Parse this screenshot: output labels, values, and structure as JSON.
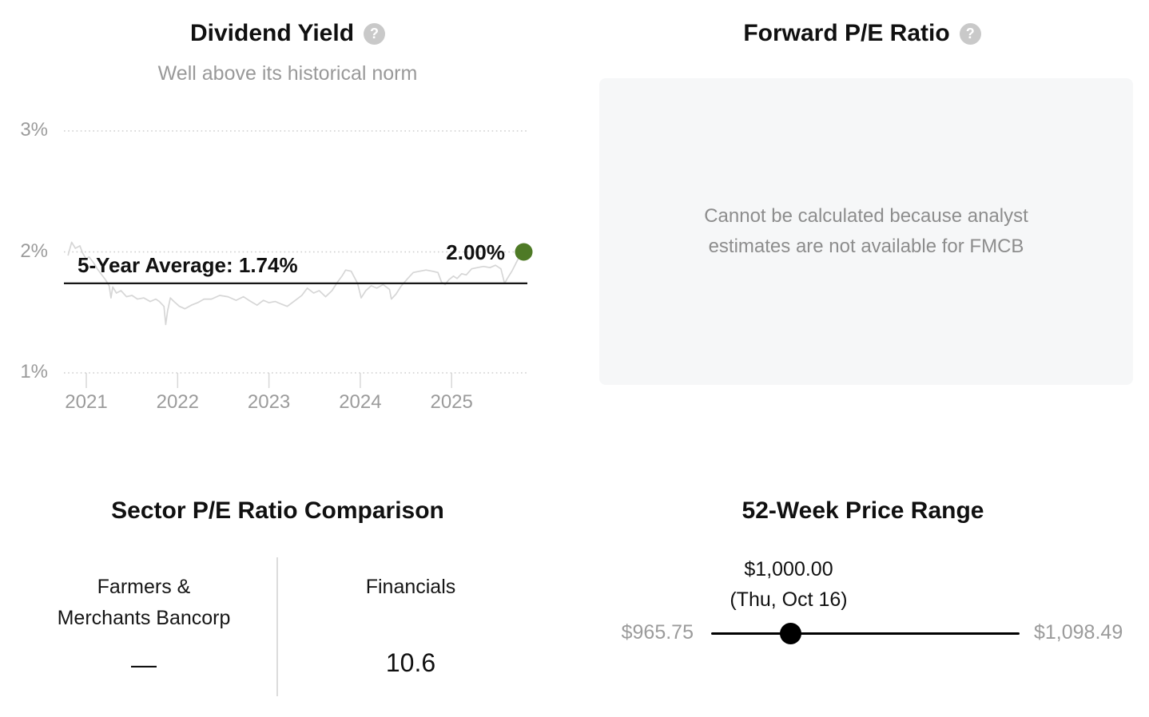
{
  "ui": {
    "help_glyph": "?",
    "background": "#ffffff",
    "accent_green": "#4e7a26",
    "muted_color": "#999999"
  },
  "forward_pe": {
    "title": "Forward P/E Ratio",
    "message_line1": "Cannot be calculated because analyst",
    "message_line2": "estimates are not available for FMCB",
    "panel_color": "#f6f7f8"
  },
  "chart_data": [
    {
      "id": "dividend-yield-history",
      "type": "line",
      "title": "Dividend Yield",
      "subtitle": "Well above its historical norm",
      "xlabel": "",
      "ylabel": "",
      "ylim": [
        1,
        3.2
      ],
      "xlim": [
        2020.8,
        2025.83
      ],
      "grid": "dotted-horizontal",
      "legend_position": "none",
      "y_ticks": [
        {
          "label": "3%",
          "value": 3
        },
        {
          "label": "2%",
          "value": 2
        },
        {
          "label": "1%",
          "value": 1
        }
      ],
      "x_ticks": [
        {
          "label": "2021",
          "value": 2021
        },
        {
          "label": "2022",
          "value": 2022
        },
        {
          "label": "2023",
          "value": 2023
        },
        {
          "label": "2024",
          "value": 2024
        },
        {
          "label": "2025",
          "value": 2025
        }
      ],
      "reference_line": {
        "label": "5-Year Average: 1.74%",
        "value": 1.74,
        "color": "#151515"
      },
      "end_marker": {
        "label": "2.00%",
        "value": 2.0,
        "color": "#4e7a26"
      },
      "series": [
        {
          "name": "Dividend yield",
          "color": "#d6d6d6",
          "points": [
            [
              2020.8,
              1.97
            ],
            [
              2020.84,
              2.08
            ],
            [
              2020.88,
              2.03
            ],
            [
              2020.93,
              2.05
            ],
            [
              2020.96,
              1.99
            ],
            [
              2021.0,
              1.94
            ],
            [
              2021.03,
              1.96
            ],
            [
              2021.08,
              1.91
            ],
            [
              2021.12,
              1.86
            ],
            [
              2021.17,
              1.81
            ],
            [
              2021.21,
              1.77
            ],
            [
              2021.25,
              1.72
            ],
            [
              2021.27,
              1.62
            ],
            [
              2021.29,
              1.71
            ],
            [
              2021.33,
              1.66
            ],
            [
              2021.38,
              1.68
            ],
            [
              2021.44,
              1.63
            ],
            [
              2021.5,
              1.64
            ],
            [
              2021.56,
              1.61
            ],
            [
              2021.63,
              1.62
            ],
            [
              2021.7,
              1.59
            ],
            [
              2021.76,
              1.61
            ],
            [
              2021.8,
              1.59
            ],
            [
              2021.85,
              1.55
            ],
            [
              2021.87,
              1.4
            ],
            [
              2021.89,
              1.51
            ],
            [
              2021.92,
              1.62
            ],
            [
              2021.96,
              1.59
            ],
            [
              2022.02,
              1.55
            ],
            [
              2022.08,
              1.53
            ],
            [
              2022.15,
              1.56
            ],
            [
              2022.22,
              1.58
            ],
            [
              2022.29,
              1.61
            ],
            [
              2022.37,
              1.61
            ],
            [
              2022.46,
              1.64
            ],
            [
              2022.55,
              1.63
            ],
            [
              2022.64,
              1.6
            ],
            [
              2022.72,
              1.63
            ],
            [
              2022.78,
              1.6
            ],
            [
              2022.87,
              1.56
            ],
            [
              2022.94,
              1.6
            ],
            [
              2023.0,
              1.58
            ],
            [
              2023.07,
              1.59
            ],
            [
              2023.13,
              1.57
            ],
            [
              2023.2,
              1.55
            ],
            [
              2023.29,
              1.6
            ],
            [
              2023.36,
              1.64
            ],
            [
              2023.42,
              1.7
            ],
            [
              2023.49,
              1.66
            ],
            [
              2023.55,
              1.68
            ],
            [
              2023.62,
              1.63
            ],
            [
              2023.69,
              1.68
            ],
            [
              2023.75,
              1.75
            ],
            [
              2023.8,
              1.8
            ],
            [
              2023.84,
              1.85
            ],
            [
              2023.9,
              1.84
            ],
            [
              2023.97,
              1.74
            ],
            [
              2024.01,
              1.62
            ],
            [
              2024.06,
              1.68
            ],
            [
              2024.12,
              1.72
            ],
            [
              2024.18,
              1.7
            ],
            [
              2024.25,
              1.73
            ],
            [
              2024.32,
              1.69
            ],
            [
              2024.34,
              1.61
            ],
            [
              2024.39,
              1.65
            ],
            [
              2024.45,
              1.72
            ],
            [
              2024.52,
              1.78
            ],
            [
              2024.58,
              1.83
            ],
            [
              2024.65,
              1.84
            ],
            [
              2024.72,
              1.85
            ],
            [
              2024.79,
              1.84
            ],
            [
              2024.85,
              1.83
            ],
            [
              2024.89,
              1.75
            ],
            [
              2024.93,
              1.73
            ],
            [
              2024.97,
              1.77
            ],
            [
              2025.02,
              1.8
            ],
            [
              2025.06,
              1.78
            ],
            [
              2025.11,
              1.82
            ],
            [
              2025.16,
              1.81
            ],
            [
              2025.22,
              1.86
            ],
            [
              2025.28,
              1.87
            ],
            [
              2025.35,
              1.88
            ],
            [
              2025.42,
              1.87
            ],
            [
              2025.48,
              1.89
            ],
            [
              2025.54,
              1.86
            ],
            [
              2025.58,
              1.74
            ],
            [
              2025.61,
              1.78
            ],
            [
              2025.66,
              1.84
            ],
            [
              2025.7,
              1.9
            ],
            [
              2025.74,
              1.96
            ],
            [
              2025.79,
              2.0
            ]
          ]
        }
      ]
    },
    {
      "id": "sector-pe-comparison",
      "type": "table",
      "title": "Sector P/E Ratio Comparison",
      "columns": [
        {
          "label_lines": [
            "Farmers &",
            "Merchants Bancorp"
          ],
          "value": "—"
        },
        {
          "label_lines": [
            "Financials",
            ""
          ],
          "value": "10.6"
        }
      ]
    },
    {
      "id": "fifty-two-week-price-range",
      "type": "range",
      "title": "52-Week Price Range",
      "low": 965.75,
      "high": 1098.49,
      "current": 1000.0,
      "low_label": "$965.75",
      "high_label": "$1,098.49",
      "current_label": "$1,000.00",
      "current_date_label": "(Thu, Oct 16)"
    }
  ]
}
